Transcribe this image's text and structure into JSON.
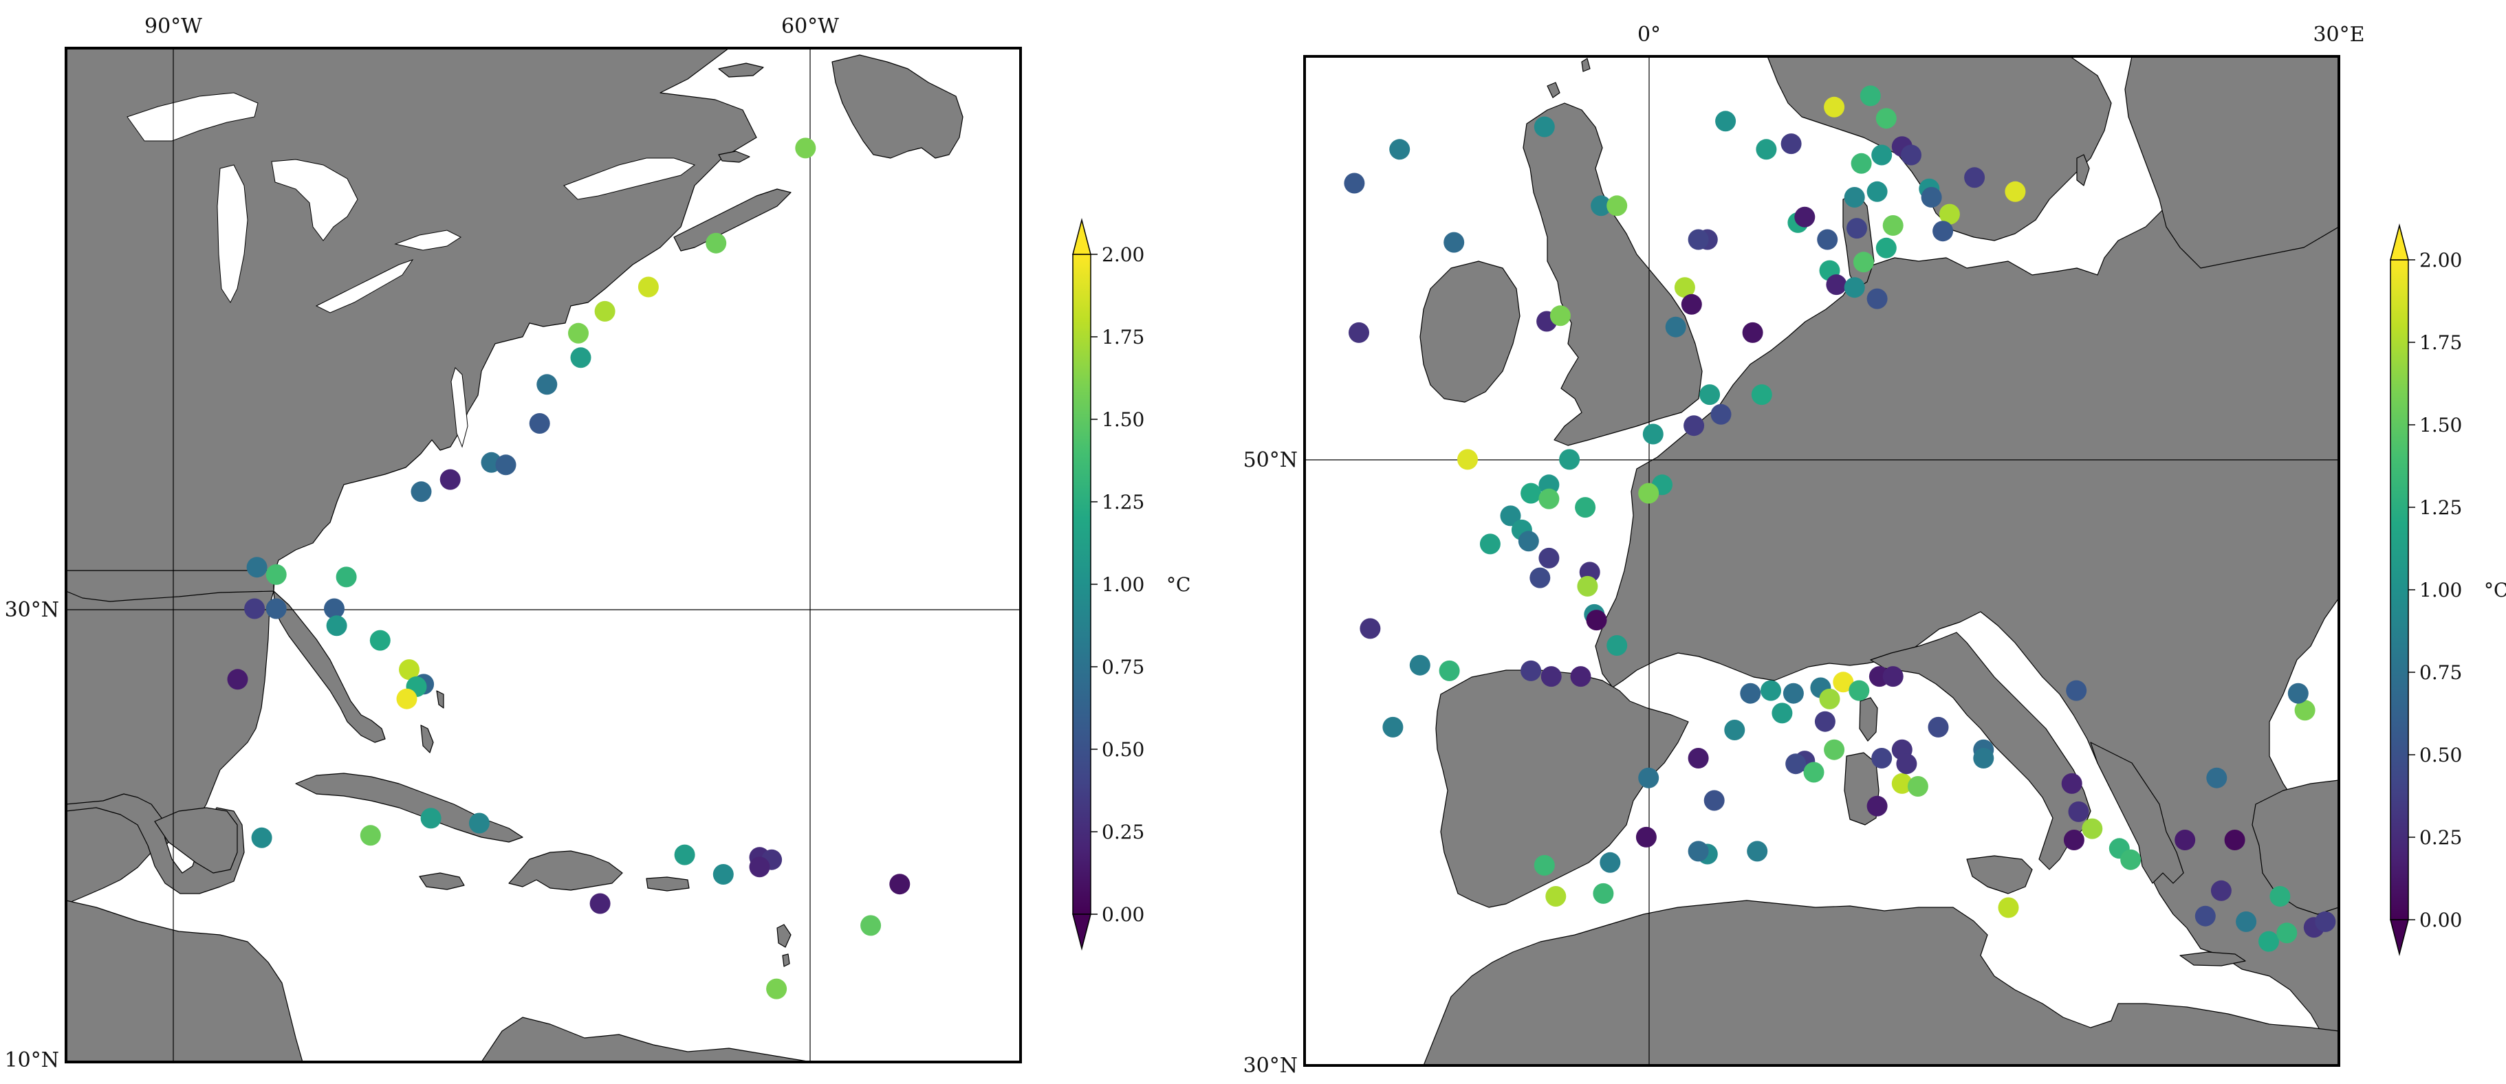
{
  "figure": {
    "colormap": [
      "#440154",
      "#482475",
      "#414487",
      "#355f8d",
      "#2a788e",
      "#21918c",
      "#22a884",
      "#44bf70",
      "#7ad151",
      "#bddf26",
      "#fde725"
    ],
    "land_color": "#808080",
    "ocean_color": "#ffffff"
  },
  "west_map": {
    "lon_labels": [
      "90°W",
      "60°W"
    ],
    "lat_labels": [
      "30°N",
      "10°N"
    ],
    "colorbar": {
      "unit": "°C",
      "ticks": [
        "0.00",
        "0.25",
        "0.50",
        "0.75",
        "1.00",
        "1.25",
        "1.50",
        "1.75",
        "2.00"
      ],
      "min": 0,
      "max": 2,
      "extend": "both"
    },
    "stations": [
      {
        "lon": -64.5,
        "lat": 47.5,
        "v": 1.6
      },
      {
        "lon": -68.2,
        "lat": 43.6,
        "v": 1.55
      },
      {
        "lon": -71.0,
        "lat": 41.8,
        "v": 1.85
      },
      {
        "lon": -72.8,
        "lat": 40.8,
        "v": 1.75
      },
      {
        "lon": -73.9,
        "lat": 39.9,
        "v": 1.6
      },
      {
        "lon": -73.8,
        "lat": 38.9,
        "v": 1.1
      },
      {
        "lon": -75.2,
        "lat": 37.8,
        "v": 0.75
      },
      {
        "lon": -75.5,
        "lat": 36.2,
        "v": 0.55
      },
      {
        "lon": -77.5,
        "lat": 34.6,
        "v": 0.75
      },
      {
        "lon": -76.9,
        "lat": 34.5,
        "v": 0.6
      },
      {
        "lon": -79.2,
        "lat": 33.9,
        "v": 0.2
      },
      {
        "lon": -80.4,
        "lat": 33.4,
        "v": 0.7
      },
      {
        "lon": -87.2,
        "lat": 30.3,
        "v": 0.75
      },
      {
        "lon": -86.4,
        "lat": 30.0,
        "v": 1.4
      },
      {
        "lon": -83.5,
        "lat": 29.9,
        "v": 1.3
      },
      {
        "lon": -87.3,
        "lat": 28.6,
        "v": 0.35
      },
      {
        "lon": -86.4,
        "lat": 28.6,
        "v": 0.6
      },
      {
        "lon": -84.0,
        "lat": 28.6,
        "v": 0.6
      },
      {
        "lon": -83.9,
        "lat": 27.9,
        "v": 1.05
      },
      {
        "lon": -82.1,
        "lat": 27.3,
        "v": 1.2
      },
      {
        "lon": -80.9,
        "lat": 26.1,
        "v": 1.8
      },
      {
        "lon": -80.3,
        "lat": 25.5,
        "v": 0.65
      },
      {
        "lon": -80.6,
        "lat": 25.4,
        "v": 1.2
      },
      {
        "lon": -81.0,
        "lat": 24.9,
        "v": 1.95
      },
      {
        "lon": -88.0,
        "lat": 25.7,
        "v": 0.15
      },
      {
        "lon": -80.0,
        "lat": 20.0,
        "v": 1.1
      },
      {
        "lon": -82.5,
        "lat": 19.3,
        "v": 1.55
      },
      {
        "lon": -78.0,
        "lat": 19.8,
        "v": 0.9
      },
      {
        "lon": -87.0,
        "lat": 19.2,
        "v": 0.95
      },
      {
        "lon": -73.0,
        "lat": 16.5,
        "v": 0.2
      },
      {
        "lon": -69.5,
        "lat": 18.5,
        "v": 1.1
      },
      {
        "lon": -67.9,
        "lat": 17.7,
        "v": 0.95
      },
      {
        "lon": -66.4,
        "lat": 18.4,
        "v": 0.25
      },
      {
        "lon": -65.9,
        "lat": 18.3,
        "v": 0.3
      },
      {
        "lon": -60.6,
        "lat": 17.3,
        "v": 0.1
      },
      {
        "lon": -61.8,
        "lat": 15.6,
        "v": 1.5
      },
      {
        "lon": -65.7,
        "lat": 13.0,
        "v": 1.6
      },
      {
        "lon": -66.4,
        "lat": 18.0,
        "v": 0.2
      }
    ]
  },
  "east_map": {
    "lon_labels": [
      "0°",
      "30°E"
    ],
    "lat_labels": [
      "50°N",
      "30°N"
    ],
    "colorbar": {
      "unit": "°C",
      "ticks": [
        "0.00",
        "0.25",
        "0.50",
        "0.75",
        "1.00",
        "1.25",
        "1.50",
        "1.75",
        "2.00"
      ],
      "min": 0,
      "max": 2,
      "extend": "both"
    },
    "stations": [
      {
        "lon": -13.2,
        "lat": 61.3,
        "v": 0.55
      },
      {
        "lon": -11.2,
        "lat": 62.5,
        "v": 0.85
      },
      {
        "lon": -8.8,
        "lat": 59.2,
        "v": 0.7
      },
      {
        "lon": -4.8,
        "lat": 63.3,
        "v": 0.95
      },
      {
        "lon": -2.3,
        "lat": 60.5,
        "v": 0.9
      },
      {
        "lon": -1.6,
        "lat": 60.5,
        "v": 1.6
      },
      {
        "lon": 3.2,
        "lat": 63.5,
        "v": 1.0
      },
      {
        "lon": 5.0,
        "lat": 62.5,
        "v": 1.1
      },
      {
        "lon": 6.1,
        "lat": 62.7,
        "v": 0.35
      },
      {
        "lon": 2.4,
        "lat": 59.3,
        "v": 0.35
      },
      {
        "lon": 2.0,
        "lat": 59.3,
        "v": 0.4
      },
      {
        "lon": 6.4,
        "lat": 59.9,
        "v": 1.2
      },
      {
        "lon": 1.4,
        "lat": 57.6,
        "v": 1.75
      },
      {
        "lon": 1.7,
        "lat": 57.0,
        "v": 0.1
      },
      {
        "lon": -13.0,
        "lat": 56.0,
        "v": 0.3
      },
      {
        "lon": -4.7,
        "lat": 56.4,
        "v": 0.25
      },
      {
        "lon": -4.1,
        "lat": 56.6,
        "v": 1.6
      },
      {
        "lon": 1.0,
        "lat": 56.2,
        "v": 0.75
      },
      {
        "lon": 4.4,
        "lat": 56.0,
        "v": 0.1
      },
      {
        "lon": 2.5,
        "lat": 53.8,
        "v": 1.1
      },
      {
        "lon": 4.8,
        "lat": 53.8,
        "v": 1.2
      },
      {
        "lon": 3.0,
        "lat": 53.1,
        "v": 0.45
      },
      {
        "lon": 1.8,
        "lat": 52.7,
        "v": 0.35
      },
      {
        "lon": 0.0,
        "lat": 52.4,
        "v": 1.05
      },
      {
        "lon": -8.2,
        "lat": 51.5,
        "v": 1.9
      },
      {
        "lon": -3.7,
        "lat": 51.5,
        "v": 1.1
      },
      {
        "lon": 0.4,
        "lat": 50.6,
        "v": 1.15
      },
      {
        "lon": -0.2,
        "lat": 50.3,
        "v": 1.6
      },
      {
        "lon": -4.6,
        "lat": 50.6,
        "v": 1.05
      },
      {
        "lon": -5.4,
        "lat": 50.3,
        "v": 1.2
      },
      {
        "lon": -4.6,
        "lat": 50.1,
        "v": 1.45
      },
      {
        "lon": -3.0,
        "lat": 49.8,
        "v": 1.25
      },
      {
        "lon": -6.3,
        "lat": 49.5,
        "v": 0.95
      },
      {
        "lon": -5.8,
        "lat": 49.0,
        "v": 1.05
      },
      {
        "lon": -5.5,
        "lat": 48.6,
        "v": 0.75
      },
      {
        "lon": -7.2,
        "lat": 48.5,
        "v": 1.15
      },
      {
        "lon": -4.6,
        "lat": 48.0,
        "v": 0.35
      },
      {
        "lon": -5.0,
        "lat": 47.3,
        "v": 0.45
      },
      {
        "lon": -2.8,
        "lat": 47.5,
        "v": 0.3
      },
      {
        "lon": -2.9,
        "lat": 47.0,
        "v": 1.7
      },
      {
        "lon": -2.6,
        "lat": 46.0,
        "v": 0.95
      },
      {
        "lon": -2.5,
        "lat": 45.8,
        "v": 0.05
      },
      {
        "lon": -12.5,
        "lat": 45.5,
        "v": 0.3
      },
      {
        "lon": -10.3,
        "lat": 44.2,
        "v": 0.85
      },
      {
        "lon": -9.0,
        "lat": 44.0,
        "v": 1.3
      },
      {
        "lon": -5.4,
        "lat": 44.0,
        "v": 0.35
      },
      {
        "lon": -4.5,
        "lat": 43.8,
        "v": 0.25
      },
      {
        "lon": -3.2,
        "lat": 43.8,
        "v": 0.2
      },
      {
        "lon": -1.6,
        "lat": 44.9,
        "v": 1.1
      },
      {
        "lon": -11.5,
        "lat": 42.0,
        "v": 0.85
      },
      {
        "lon": 4.3,
        "lat": 43.2,
        "v": 0.65
      },
      {
        "lon": 5.2,
        "lat": 43.3,
        "v": 1.05
      },
      {
        "lon": 6.2,
        "lat": 43.2,
        "v": 0.75
      },
      {
        "lon": 7.4,
        "lat": 43.4,
        "v": 0.8
      },
      {
        "lon": 8.4,
        "lat": 43.6,
        "v": 1.95
      },
      {
        "lon": 9.1,
        "lat": 43.3,
        "v": 1.3
      },
      {
        "lon": 10.0,
        "lat": 43.8,
        "v": 0.15
      },
      {
        "lon": 10.6,
        "lat": 43.8,
        "v": 0.2
      },
      {
        "lon": 7.8,
        "lat": 43.0,
        "v": 1.7
      },
      {
        "lon": 5.7,
        "lat": 42.5,
        "v": 1.1
      },
      {
        "lon": 3.6,
        "lat": 41.9,
        "v": 0.9
      },
      {
        "lon": 7.6,
        "lat": 42.2,
        "v": 0.35
      },
      {
        "lon": 8.0,
        "lat": 41.2,
        "v": 1.5
      },
      {
        "lon": 2.0,
        "lat": 40.9,
        "v": 0.15
      },
      {
        "lon": 6.7,
        "lat": 40.8,
        "v": 0.35
      },
      {
        "lon": 6.3,
        "lat": 40.7,
        "v": 0.45
      },
      {
        "lon": 7.1,
        "lat": 40.4,
        "v": 1.4
      },
      {
        "lon": 10.1,
        "lat": 40.9,
        "v": 0.4
      },
      {
        "lon": 11.0,
        "lat": 41.2,
        "v": 0.3
      },
      {
        "lon": 12.6,
        "lat": 42.0,
        "v": 0.45
      },
      {
        "lon": 14.6,
        "lat": 41.2,
        "v": 0.7
      },
      {
        "lon": 14.6,
        "lat": 40.9,
        "v": 0.8
      },
      {
        "lon": 11.0,
        "lat": 40.0,
        "v": 1.8
      },
      {
        "lon": 11.7,
        "lat": 39.9,
        "v": 1.55
      },
      {
        "lon": 9.9,
        "lat": 39.2,
        "v": 0.15
      },
      {
        "lon": -0.2,
        "lat": 40.2,
        "v": 0.75
      },
      {
        "lon": 2.7,
        "lat": 39.4,
        "v": 0.5
      },
      {
        "lon": -0.3,
        "lat": 38.1,
        "v": 0.1
      },
      {
        "lon": -4.8,
        "lat": 37.1,
        "v": 1.35
      },
      {
        "lon": -4.3,
        "lat": 36.0,
        "v": 1.75
      },
      {
        "lon": -1.9,
        "lat": 37.2,
        "v": 0.85
      },
      {
        "lon": -2.2,
        "lat": 36.1,
        "v": 1.35
      },
      {
        "lon": 2.4,
        "lat": 37.5,
        "v": 0.95
      },
      {
        "lon": 2.0,
        "lat": 37.6,
        "v": 0.7
      },
      {
        "lon": 4.6,
        "lat": 37.6,
        "v": 0.85
      },
      {
        "lon": 11.2,
        "lat": 40.7,
        "v": 0.3
      },
      {
        "lon": 18.7,
        "lat": 43.3,
        "v": 0.55
      },
      {
        "lon": 18.5,
        "lat": 40.0,
        "v": 0.2
      },
      {
        "lon": 18.8,
        "lat": 39.0,
        "v": 0.3
      },
      {
        "lon": 19.4,
        "lat": 38.4,
        "v": 1.7
      },
      {
        "lon": 18.6,
        "lat": 38.0,
        "v": 0.1
      },
      {
        "lon": 20.6,
        "lat": 37.7,
        "v": 1.3
      },
      {
        "lon": 21.1,
        "lat": 37.3,
        "v": 1.35
      },
      {
        "lon": 15.7,
        "lat": 35.6,
        "v": 1.8
      },
      {
        "lon": 24.9,
        "lat": 40.2,
        "v": 0.7
      },
      {
        "lon": 23.5,
        "lat": 38.0,
        "v": 0.15
      },
      {
        "lon": 25.7,
        "lat": 38.0,
        "v": 0.05
      },
      {
        "lon": 25.1,
        "lat": 36.2,
        "v": 0.3
      },
      {
        "lon": 24.4,
        "lat": 35.3,
        "v": 0.45
      },
      {
        "lon": 26.2,
        "lat": 35.1,
        "v": 0.8
      },
      {
        "lon": 27.7,
        "lat": 36.0,
        "v": 1.25
      },
      {
        "lon": 27.2,
        "lat": 34.4,
        "v": 1.2
      },
      {
        "lon": 28.0,
        "lat": 34.7,
        "v": 1.3
      },
      {
        "lon": 29.2,
        "lat": 34.9,
        "v": 0.3
      },
      {
        "lon": 29.7,
        "lat": 35.1,
        "v": 0.35
      },
      {
        "lon": 28.8,
        "lat": 42.6,
        "v": 1.6
      },
      {
        "lon": 28.5,
        "lat": 43.2,
        "v": 0.7
      },
      {
        "lon": 9.2,
        "lat": 62.0,
        "v": 1.35
      },
      {
        "lon": 10.1,
        "lat": 62.3,
        "v": 1.05
      },
      {
        "lon": 11.0,
        "lat": 62.6,
        "v": 0.25
      },
      {
        "lon": 11.4,
        "lat": 62.3,
        "v": 0.35
      },
      {
        "lon": 10.3,
        "lat": 63.6,
        "v": 1.4
      },
      {
        "lon": 9.9,
        "lat": 61.0,
        "v": 1.0
      },
      {
        "lon": 8.9,
        "lat": 60.8,
        "v": 0.9
      },
      {
        "lon": 12.2,
        "lat": 61.1,
        "v": 1.0
      },
      {
        "lon": 13.1,
        "lat": 60.2,
        "v": 1.75
      },
      {
        "lon": 14.2,
        "lat": 61.5,
        "v": 0.35
      },
      {
        "lon": 9.0,
        "lat": 59.7,
        "v": 0.4
      },
      {
        "lon": 10.6,
        "lat": 59.8,
        "v": 1.55
      },
      {
        "lon": 12.8,
        "lat": 59.6,
        "v": 0.55
      },
      {
        "lon": 16.0,
        "lat": 61.0,
        "v": 1.9
      },
      {
        "lon": 10.3,
        "lat": 59.0,
        "v": 1.2
      },
      {
        "lon": 9.6,
        "lat": 64.4,
        "v": 1.3
      },
      {
        "lon": 8.0,
        "lat": 64.0,
        "v": 1.9
      },
      {
        "lon": 12.3,
        "lat": 60.8,
        "v": 0.6
      },
      {
        "lon": 6.7,
        "lat": 60.1,
        "v": 0.15
      },
      {
        "lon": 7.7,
        "lat": 59.3,
        "v": 0.55
      },
      {
        "lon": 7.8,
        "lat": 58.2,
        "v": 1.2
      },
      {
        "lon": 9.3,
        "lat": 58.5,
        "v": 1.45
      },
      {
        "lon": 8.1,
        "lat": 57.7,
        "v": 0.2
      },
      {
        "lon": 8.9,
        "lat": 57.6,
        "v": 0.95
      },
      {
        "lon": 9.9,
        "lat": 57.2,
        "v": 0.5
      }
    ]
  }
}
